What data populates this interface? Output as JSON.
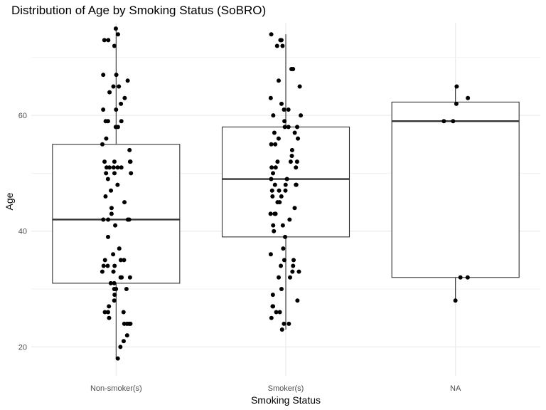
{
  "chart_data": {
    "type": "boxplot",
    "title": "Distribution of Age by Smoking Status (SoBRO)",
    "xlabel": "Smoking Status",
    "ylabel": "Age",
    "categories": [
      "Non-smoker(s)",
      "Smoker(s)",
      "NA"
    ],
    "ylim": [
      15,
      76
    ],
    "yticks": [
      20,
      40,
      60
    ],
    "grid": true,
    "colors": {
      "points": "#000000",
      "box": "#333333",
      "grid": "#ebebeb",
      "background": "#ffffff"
    },
    "boxes": [
      {
        "category": "Non-smoker(s)",
        "whisker_low": 18,
        "q1": 31,
        "median": 42,
        "q3": 55,
        "whisker_high": 75
      },
      {
        "category": "Smoker(s)",
        "whisker_low": 23,
        "q1": 39,
        "median": 49,
        "q3": 58,
        "whisker_high": 74
      },
      {
        "category": "NA",
        "whisker_low": 28,
        "q1": 32,
        "median": 59,
        "q3": 62.3,
        "whisker_high": 65
      }
    ],
    "points": [
      {
        "category": "Non-smoker(s)",
        "values": [
          75,
          74,
          73,
          73,
          72,
          67,
          67,
          66,
          65,
          65,
          64,
          63,
          62,
          61,
          61,
          59,
          59,
          59,
          58,
          58,
          56,
          55,
          54,
          52,
          52,
          52,
          52,
          51,
          51,
          51,
          51,
          51,
          50,
          50,
          50,
          49,
          48,
          47,
          46,
          45,
          44,
          43,
          42,
          42,
          42,
          42,
          41,
          39,
          37,
          36,
          35,
          35,
          35,
          34,
          34,
          34,
          33,
          33,
          32,
          32,
          32,
          31,
          31,
          30,
          30,
          30,
          29,
          28,
          27,
          26,
          26,
          26,
          25,
          24,
          24,
          24,
          24,
          22,
          21,
          20,
          18
        ]
      },
      {
        "category": "Smoker(s)",
        "values": [
          74,
          73,
          73,
          72,
          72,
          68,
          68,
          66,
          65,
          63,
          62,
          61,
          61,
          60,
          60,
          59,
          58,
          58,
          58,
          57,
          57,
          56,
          56,
          55,
          55,
          54,
          53,
          52,
          52,
          52,
          51,
          51,
          51,
          50,
          49,
          49,
          48,
          48,
          48,
          48,
          47,
          47,
          47,
          46,
          46,
          45,
          45,
          44,
          43,
          43,
          43,
          42,
          41,
          41,
          40,
          39,
          37,
          36,
          35,
          35,
          34,
          34,
          33,
          33,
          32,
          32,
          30,
          29,
          28,
          27,
          27,
          26,
          26,
          25,
          24,
          24,
          23
        ]
      },
      {
        "category": "NA",
        "values": [
          65,
          63,
          62,
          59,
          59,
          32,
          32,
          28
        ]
      }
    ]
  }
}
